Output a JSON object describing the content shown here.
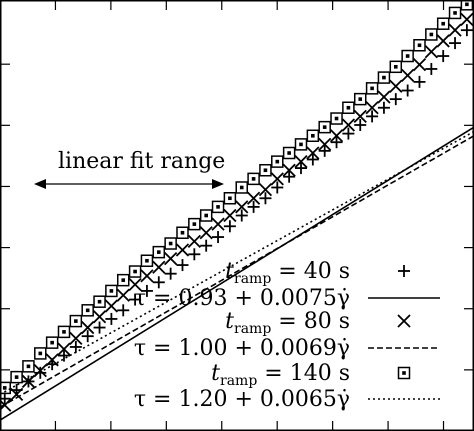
{
  "chart_data": {
    "type": "scatter",
    "xlabel": "",
    "ylabel": "",
    "xlim": [
      0,
      100
    ],
    "ylim": [
      0,
      100
    ],
    "grid": false,
    "legend": "bottom-right",
    "annotation": {
      "text": "linear fit range",
      "range": [
        0,
        35
      ]
    },
    "series": [
      {
        "name": "t_ramp = 40 s",
        "label_var": "t",
        "label_sub": "ramp",
        "label_rest": " = 40 s",
        "marker": "plus",
        "x": [
          1,
          3.5,
          6,
          8.5,
          11,
          13.5,
          16,
          18.5,
          21,
          23.5,
          26,
          28.5,
          31,
          33.5,
          36,
          38.5,
          41,
          43.5,
          46,
          48.5,
          51,
          53.5,
          56,
          58.5,
          61,
          63.5,
          66,
          68.5,
          71,
          73.5,
          76,
          78.5,
          81,
          83.5,
          86,
          88.5,
          91,
          93.5,
          96,
          98.5
        ],
        "y": [
          7.5,
          9.5,
          11.5,
          13.5,
          15.5,
          17.5,
          19.5,
          22,
          24,
          26,
          28,
          30.5,
          32.5,
          34.5,
          36.5,
          38.5,
          41,
          43,
          45,
          47.5,
          50,
          52,
          54,
          56.5,
          59,
          61,
          63,
          65,
          67,
          69,
          71,
          73,
          75,
          77,
          79,
          81,
          84,
          87,
          90,
          93
        ]
      },
      {
        "name": "τ = 0.93 + 0.0075γ̇",
        "label_rest": "τ = 0.93 + 0.0075γ̇",
        "line": "solid",
        "intercept": 2.5,
        "slope": 0.68
      },
      {
        "name": "t_ramp = 80 s",
        "label_var": "t",
        "label_sub": "ramp",
        "label_rest": " = 80 s",
        "marker": "cross",
        "x": [
          1,
          3.5,
          6,
          8.5,
          11,
          13.5,
          16,
          18.5,
          21,
          23.5,
          26,
          28.5,
          31,
          33.5,
          36,
          38.5,
          41,
          43.5,
          46,
          48.5,
          51,
          53.5,
          56,
          58.5,
          61,
          63.5,
          66,
          68.5,
          71,
          73.5,
          76,
          78.5,
          81,
          83.5,
          86,
          88.5,
          91,
          93.5,
          96,
          98.5
        ],
        "y": [
          6,
          8.5,
          11.5,
          14,
          16.5,
          19,
          21.5,
          24,
          26.5,
          29,
          31.5,
          34,
          36,
          38,
          40,
          42,
          44,
          46,
          48,
          50,
          52,
          54,
          56,
          58.5,
          60.5,
          62.5,
          64.5,
          66.5,
          68.5,
          71,
          73,
          75,
          77.5,
          80,
          82.5,
          85,
          88,
          90.5,
          93,
          95.5
        ]
      },
      {
        "name": "τ = 1.00 + 0.0069γ̇",
        "label_rest": "τ = 1.00 + 0.0069γ̇",
        "line": "dashed",
        "intercept": 5.5,
        "slope": 0.63
      },
      {
        "name": "t_ramp = 140 s",
        "label_var": "t",
        "label_sub": "ramp",
        "label_rest": " = 140 s",
        "marker": "square",
        "x": [
          1,
          3.5,
          6,
          8.5,
          11,
          13.5,
          16,
          18.5,
          21,
          23.5,
          26,
          28.5,
          31,
          33.5,
          36,
          38.5,
          41,
          43.5,
          46,
          48.5,
          51,
          53.5,
          56,
          58.5,
          61,
          63.5,
          66,
          68.5,
          71,
          73.5,
          76,
          78.5,
          81,
          83.5,
          86,
          88.5,
          91,
          93.5,
          96,
          98.5
        ],
        "y": [
          10,
          12.5,
          15,
          18,
          20.5,
          23,
          25.5,
          28,
          30,
          32.5,
          35,
          37,
          39.5,
          41.5,
          43.5,
          46,
          48,
          50,
          52,
          54,
          56.5,
          58.5,
          60.5,
          62.5,
          64.5,
          66.5,
          68.5,
          70.5,
          72.5,
          75,
          77,
          79.5,
          82,
          84.5,
          87,
          89.5,
          92,
          94.5,
          97,
          99
        ]
      },
      {
        "name": "τ = 1.20 + 0.0065γ̇",
        "label_rest": "τ = 1.20 + 0.0065γ̇",
        "line": "dotted",
        "intercept": 8.5,
        "slope": 0.61
      }
    ]
  }
}
